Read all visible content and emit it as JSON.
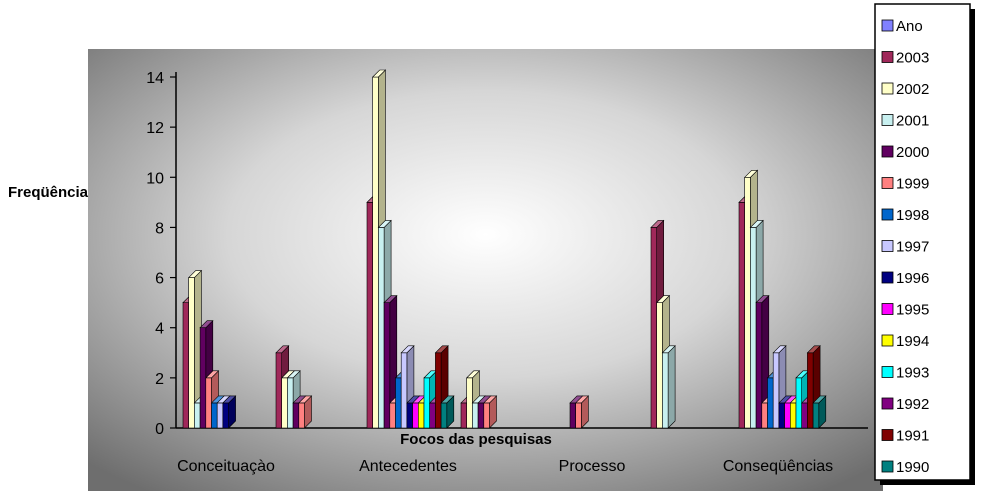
{
  "chart_data": {
    "type": "bar",
    "title": "",
    "xlabel": "Focos das pesquisas",
    "ylabel": "Freqüência",
    "ylim": [
      0,
      14
    ],
    "yticks": [
      0,
      2,
      4,
      6,
      8,
      10,
      12,
      14
    ],
    "grid": false,
    "legend_position": "right",
    "categories": [
      "Conceituaçào",
      "Antecedentes",
      "Processo",
      "Conseqüências"
    ],
    "groups": [
      {
        "category": "Conceituaçào",
        "bars": [
          {
            "series": "2003",
            "value": 5
          },
          {
            "series": "2002",
            "value": 6
          },
          {
            "series": "2001",
            "value": 1
          },
          {
            "series": "2000",
            "value": 4
          },
          {
            "series": "1999",
            "value": 2
          },
          {
            "series": "1998",
            "value": 1
          },
          {
            "series": "1997",
            "value": 1
          },
          {
            "series": "1996",
            "value": 1
          }
        ]
      },
      {
        "category": "",
        "bars": [
          {
            "series": "2003",
            "value": 3
          },
          {
            "series": "2002",
            "value": 2
          },
          {
            "series": "2001",
            "value": 2
          },
          {
            "series": "2000",
            "value": 1
          },
          {
            "series": "1999",
            "value": 1
          }
        ]
      },
      {
        "category": "Antecedentes",
        "bars": [
          {
            "series": "2003",
            "value": 9
          },
          {
            "series": "2002",
            "value": 14
          },
          {
            "series": "2001",
            "value": 8
          },
          {
            "series": "2000",
            "value": 5
          },
          {
            "series": "1999",
            "value": 1
          },
          {
            "series": "1998",
            "value": 2
          },
          {
            "series": "1997",
            "value": 3
          },
          {
            "series": "1996",
            "value": 1
          },
          {
            "series": "1995",
            "value": 1
          },
          {
            "series": "1994",
            "value": 1
          },
          {
            "series": "1993",
            "value": 2
          },
          {
            "series": "1992",
            "value": 1
          },
          {
            "series": "1991",
            "value": 3
          },
          {
            "series": "1990",
            "value": 1
          }
        ]
      },
      {
        "category": "",
        "bars": [
          {
            "series": "2003",
            "value": 1
          },
          {
            "series": "2002",
            "value": 2
          },
          {
            "series": "2001",
            "value": 1
          },
          {
            "series": "2000",
            "value": 1
          },
          {
            "series": "1999",
            "value": 1
          }
        ]
      },
      {
        "category": "Processo",
        "bars": [
          {
            "series": "2000",
            "value": 1
          },
          {
            "series": "1999",
            "value": 1
          }
        ]
      },
      {
        "category": "",
        "bars": [
          {
            "series": "2003",
            "value": 8
          },
          {
            "series": "2002",
            "value": 5
          },
          {
            "series": "2001",
            "value": 3
          }
        ]
      },
      {
        "category": "Conseqüências",
        "bars": [
          {
            "series": "2003",
            "value": 9
          },
          {
            "series": "2002",
            "value": 10
          },
          {
            "series": "2001",
            "value": 8
          },
          {
            "series": "2000",
            "value": 5
          },
          {
            "series": "1999",
            "value": 1
          },
          {
            "series": "1998",
            "value": 2
          },
          {
            "series": "1997",
            "value": 3
          },
          {
            "series": "1996",
            "value": 1
          },
          {
            "series": "1995",
            "value": 1
          },
          {
            "series": "1994",
            "value": 1
          },
          {
            "series": "1993",
            "value": 2
          },
          {
            "series": "1992",
            "value": 1
          },
          {
            "series": "1991",
            "value": 3
          },
          {
            "series": "1990",
            "value": 1
          }
        ]
      }
    ],
    "legend": [
      {
        "name": "Ano",
        "color": "#8080ff"
      },
      {
        "name": "2003",
        "color": "#a0285a"
      },
      {
        "name": "2002",
        "color": "#ffffc8"
      },
      {
        "name": "2001",
        "color": "#c8f0f0"
      },
      {
        "name": "2000",
        "color": "#600060"
      },
      {
        "name": "1999",
        "color": "#ff8080"
      },
      {
        "name": "1998",
        "color": "#0066cc"
      },
      {
        "name": "1997",
        "color": "#c8c8ff"
      },
      {
        "name": "1996",
        "color": "#000080"
      },
      {
        "name": "1995",
        "color": "#ff00ff"
      },
      {
        "name": "1994",
        "color": "#ffff00"
      },
      {
        "name": "1993",
        "color": "#00ffff"
      },
      {
        "name": "1992",
        "color": "#800080"
      },
      {
        "name": "1991",
        "color": "#800000"
      },
      {
        "name": "1990",
        "color": "#008080"
      }
    ]
  }
}
